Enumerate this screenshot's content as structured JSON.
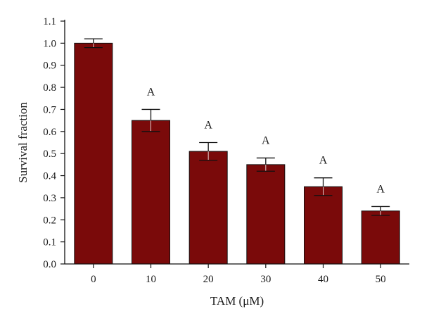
{
  "chart_data": {
    "type": "bar",
    "title": "",
    "xlabel": "TAM (μM)",
    "ylabel": "Survival fraction",
    "categories": [
      "0",
      "10",
      "20",
      "30",
      "40",
      "50"
    ],
    "series": [
      {
        "values": [
          1.0,
          0.65,
          0.51,
          0.45,
          0.35,
          0.24
        ],
        "errors": [
          0.02,
          0.05,
          0.04,
          0.03,
          0.04,
          0.02
        ],
        "color": "#7a0a0a"
      }
    ],
    "annotations": [
      "",
      "A",
      "A",
      "A",
      "A",
      "A"
    ],
    "ylim": [
      0,
      1.1
    ],
    "yticks": [
      "0.0",
      "0.1",
      "0.2",
      "0.3",
      "0.4",
      "0.5",
      "0.6",
      "0.7",
      "0.8",
      "0.9",
      "1.0",
      "1.1"
    ],
    "grid": false,
    "legend": "none"
  }
}
